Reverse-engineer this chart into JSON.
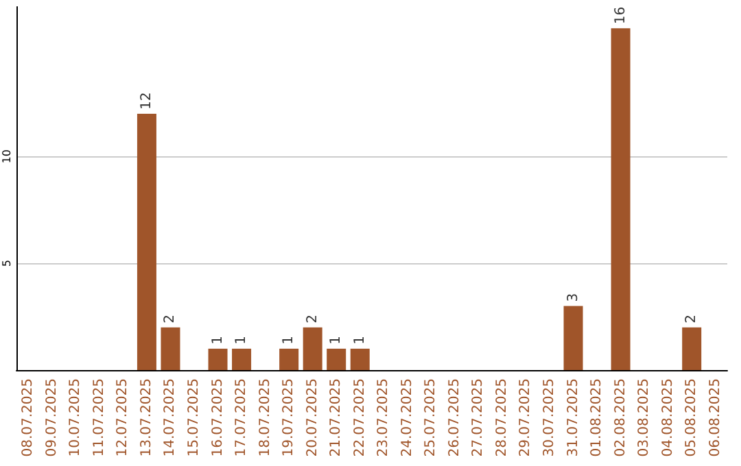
{
  "chart_data": {
    "type": "bar",
    "categories": [
      "08.07.2025",
      "09.07.2025",
      "10.07.2025",
      "11.07.2025",
      "12.07.2025",
      "13.07.2025",
      "14.07.2025",
      "15.07.2025",
      "16.07.2025",
      "17.07.2025",
      "18.07.2025",
      "19.07.2025",
      "20.07.2025",
      "21.07.2025",
      "22.07.2025",
      "23.07.2025",
      "24.07.2025",
      "25.07.2025",
      "26.07.2025",
      "27.07.2025",
      "28.07.2025",
      "29.07.2025",
      "30.07.2025",
      "31.07.2025",
      "01.08.2025",
      "02.08.2025",
      "03.08.2025",
      "04.08.2025",
      "05.08.2025",
      "06.08.2025"
    ],
    "values": [
      0,
      0,
      0,
      0,
      0,
      12,
      2,
      0,
      1,
      1,
      0,
      1,
      2,
      1,
      1,
      0,
      0,
      0,
      0,
      0,
      0,
      0,
      0,
      3,
      0,
      16,
      0,
      0,
      2,
      0
    ],
    "value_labels": [
      null,
      null,
      null,
      null,
      null,
      "12",
      "2",
      null,
      "1",
      "1",
      null,
      "1",
      "2",
      "1",
      "1",
      null,
      null,
      null,
      null,
      null,
      null,
      null,
      null,
      "3",
      null,
      "16",
      null,
      null,
      "2",
      null
    ],
    "color": "#a0552a",
    "ylim": [
      0,
      17
    ],
    "yticks": [
      5,
      10
    ],
    "grid": "y"
  }
}
